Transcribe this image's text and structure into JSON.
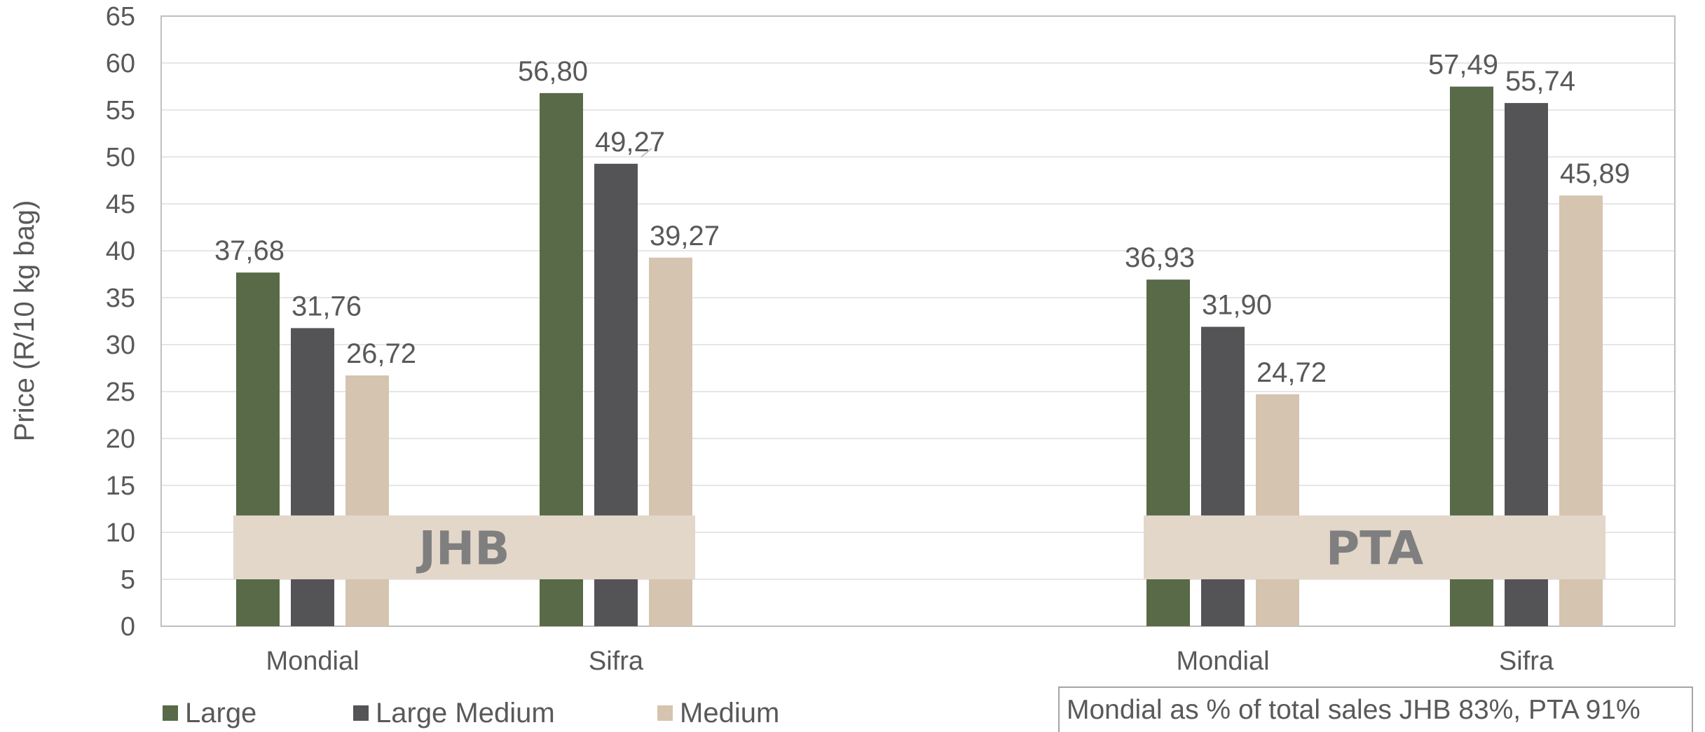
{
  "chart_data": {
    "type": "bar",
    "ylabel": "Price (R/10 kg bag)",
    "ylim": [
      0,
      65
    ],
    "ytick_step": 5,
    "categories": [
      "Mondial",
      "Sifra",
      "Mondial",
      "Sifra"
    ],
    "groups": [
      {
        "label": "JHB",
        "categories": [
          0,
          1
        ]
      },
      {
        "label": "PTA",
        "categories": [
          2,
          3
        ]
      }
    ],
    "series": [
      {
        "name": "Large",
        "color": "#586a47",
        "values": [
          37.68,
          56.8,
          36.93,
          57.49
        ],
        "labels": [
          "37,68",
          "56,80",
          "36,93",
          "57,49"
        ]
      },
      {
        "name": "Large Medium",
        "color": "#545456",
        "values": [
          31.76,
          49.27,
          31.9,
          55.74
        ],
        "labels": [
          "31,76",
          "49,27",
          "31,90",
          "55,74"
        ]
      },
      {
        "name": "Medium",
        "color": "#d5c4b0",
        "values": [
          26.72,
          39.27,
          24.72,
          45.89
        ],
        "labels": [
          "26,72",
          "39,27",
          "24,72",
          "45,89"
        ]
      }
    ],
    "grid": true,
    "legend_position": "bottom-left",
    "note": "Mondial as % of total sales JHB 83%, PTA 91%"
  }
}
